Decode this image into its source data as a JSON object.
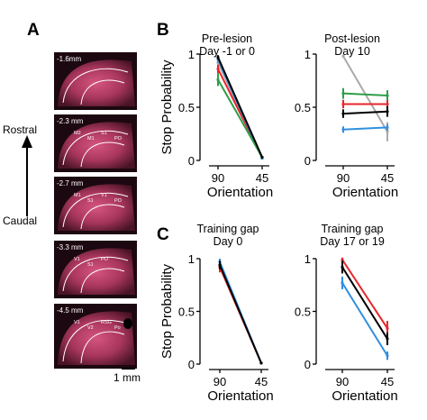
{
  "panel_labels": {
    "a": "A",
    "b": "B",
    "c": "C"
  },
  "histology": {
    "rostral_label": "Rostral",
    "caudal_label": "Caudal",
    "scale_bar_label": "1 mm",
    "stain_color": "#c8426e",
    "sections": [
      {
        "depth": "-1.6mm",
        "regions": []
      },
      {
        "depth": "-2.3 mm",
        "regions": [
          "M2",
          "M1",
          "S1",
          "PO"
        ]
      },
      {
        "depth": "-2.7 mm",
        "regions": [
          "M1",
          "S1",
          "V1",
          "PO"
        ]
      },
      {
        "depth": "-3.3 mm",
        "regions": [
          "V1",
          "S1",
          "PO"
        ]
      },
      {
        "depth": "-4.5 mm",
        "regions": [
          "V1",
          "V2",
          "RSG",
          "Po"
        ]
      }
    ]
  },
  "colors": {
    "black": "#000000",
    "red": "#e8262b",
    "green": "#2e9e48",
    "blue": "#2f8fe0",
    "gray": "#a9a9a9"
  },
  "chart_data": [
    {
      "type": "line",
      "panel": "B",
      "title": [
        "Pre-lesion",
        "Day -1 or 0"
      ],
      "xlabel": "Orientation",
      "ylabel": "Stop Probability",
      "categories": [
        "90",
        "45"
      ],
      "ylim": [
        0,
        1
      ],
      "yticks": [
        "0",
        "0.5",
        "1"
      ],
      "series": [
        {
          "color": "gray",
          "values": [
            0.92,
            0.02
          ],
          "error": [
            0.05,
            0.01
          ]
        },
        {
          "color": "red",
          "values": [
            0.86,
            0.03
          ],
          "error": [
            0.04,
            0.01
          ]
        },
        {
          "color": "blue",
          "values": [
            0.95,
            0.02
          ],
          "error": [
            0.03,
            0.01
          ]
        },
        {
          "color": "green",
          "values": [
            0.76,
            0.03
          ],
          "error": [
            0.06,
            0.01
          ]
        },
        {
          "color": "black",
          "values": [
            0.97,
            0.03
          ],
          "error": [
            0.02,
            0.01
          ]
        }
      ]
    },
    {
      "type": "line",
      "panel": "B",
      "title": [
        "Post-lesion",
        "Day 10"
      ],
      "xlabel": "Orientation",
      "ylabel": "",
      "categories": [
        "90",
        "45"
      ],
      "ylim": [
        0,
        1
      ],
      "yticks": [
        "0",
        "0.5",
        "1"
      ],
      "series": [
        {
          "color": "gray",
          "values": [
            0.98,
            0.27
          ],
          "error": [
            0.0,
            0.09
          ]
        },
        {
          "color": "green",
          "values": [
            0.63,
            0.61
          ],
          "error": [
            0.05,
            0.05
          ]
        },
        {
          "color": "red",
          "values": [
            0.53,
            0.53
          ],
          "error": [
            0.04,
            0.04
          ]
        },
        {
          "color": "black",
          "values": [
            0.44,
            0.46
          ],
          "error": [
            0.04,
            0.05
          ]
        },
        {
          "color": "blue",
          "values": [
            0.29,
            0.31
          ],
          "error": [
            0.03,
            0.03
          ]
        }
      ]
    },
    {
      "type": "line",
      "panel": "C",
      "title": [
        "Training gap",
        "Day 0"
      ],
      "xlabel": "Orientation",
      "ylabel": "Stop Probability",
      "categories": [
        "90",
        "45"
      ],
      "ylim": [
        0,
        1
      ],
      "yticks": [
        "0",
        "0.5",
        "1"
      ],
      "series": [
        {
          "color": "red",
          "values": [
            0.92,
            0.01
          ],
          "error": [
            0.05,
            0.01
          ]
        },
        {
          "color": "blue",
          "values": [
            0.97,
            0.01
          ],
          "error": [
            0.03,
            0.01
          ]
        },
        {
          "color": "black",
          "values": [
            0.94,
            0.01
          ],
          "error": [
            0.04,
            0.01
          ]
        }
      ]
    },
    {
      "type": "line",
      "panel": "C",
      "title": [
        "Training gap",
        "Day 17 or 19"
      ],
      "xlabel": "Orientation",
      "ylabel": "",
      "categories": [
        "90",
        "45"
      ],
      "ylim": [
        0,
        1
      ],
      "yticks": [
        "0",
        "0.5",
        "1"
      ],
      "series": [
        {
          "color": "red",
          "values": [
            0.99,
            0.34
          ],
          "error": [
            0.02,
            0.07
          ]
        },
        {
          "color": "black",
          "values": [
            0.92,
            0.24
          ],
          "error": [
            0.06,
            0.06
          ]
        },
        {
          "color": "blue",
          "values": [
            0.77,
            0.08
          ],
          "error": [
            0.06,
            0.04
          ]
        }
      ]
    }
  ]
}
